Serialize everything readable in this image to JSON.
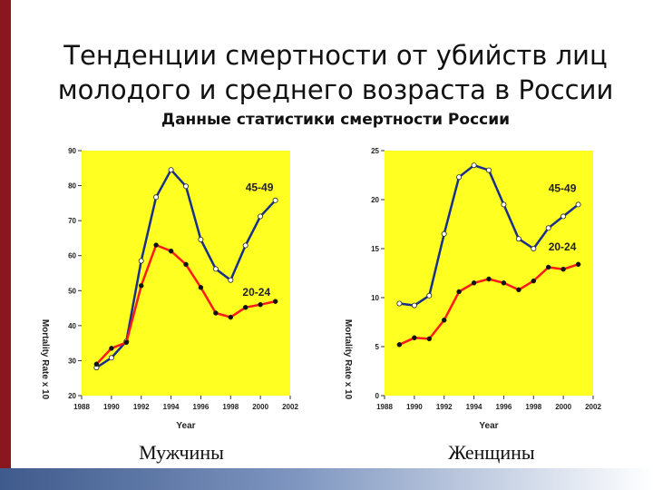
{
  "slide": {
    "title_line1": "Тенденции смертности от убийств лиц",
    "title_line2": "молодого и среднего возраста в России",
    "subtitle": "Данные статистики смертности России"
  },
  "colors": {
    "plot_background": "#ffff22",
    "series_45_49": "#1a2f8a",
    "series_20_24": "#ff1a1a",
    "accent_bar": "#8a1620"
  },
  "chart_data": [
    {
      "type": "line",
      "caption": "Мужчины",
      "xlabel": "Year",
      "ylabel": "Mortality Rate x 10",
      "xlim": [
        1988,
        2002
      ],
      "ylim": [
        20,
        90
      ],
      "xticks": [
        "1988",
        "1990",
        "1992",
        "1994",
        "1996",
        "1998",
        "2000",
        "2002"
      ],
      "yticks": [
        "20",
        "30",
        "40",
        "50",
        "60",
        "70",
        "80",
        "90"
      ],
      "grid": false,
      "series": [
        {
          "name": "45-49",
          "color": "#1a2f8a",
          "marker": "white",
          "x": [
            1989,
            1990,
            1991,
            1992,
            1993,
            1994,
            1995,
            1996,
            1997,
            1998,
            1999,
            2000,
            2001
          ],
          "y": [
            28,
            30.8,
            35.5,
            58.5,
            76.7,
            84.5,
            79.8,
            64.6,
            56.2,
            53,
            62.9,
            71.2,
            75.8
          ]
        },
        {
          "name": "20-24",
          "color": "#ff1a1a",
          "marker": "black",
          "x": [
            1989,
            1990,
            1991,
            1992,
            1993,
            1994,
            1995,
            1996,
            1997,
            1998,
            1999,
            2000,
            2001
          ],
          "y": [
            29,
            33.5,
            35.2,
            51.4,
            63,
            61.3,
            57.5,
            50.9,
            43.6,
            42.4,
            45.2,
            46,
            46.9
          ]
        }
      ]
    },
    {
      "type": "line",
      "caption": "Женщины",
      "xlabel": "Year",
      "ylabel": "Mortality Rate x 10",
      "xlim": [
        1988,
        2002
      ],
      "ylim": [
        0,
        25
      ],
      "xticks": [
        "1988",
        "1990",
        "1992",
        "1994",
        "1996",
        "1998",
        "2000",
        "2002"
      ],
      "yticks": [
        "0",
        "5",
        "10",
        "15",
        "20",
        "25"
      ],
      "grid": false,
      "series": [
        {
          "name": "45-49",
          "color": "#1a2f8a",
          "marker": "white",
          "x": [
            1989,
            1990,
            1991,
            1992,
            1993,
            1994,
            1995,
            1996,
            1997,
            1998,
            1999,
            2000,
            2001
          ],
          "y": [
            9.4,
            9.2,
            10.2,
            16.5,
            22.3,
            23.5,
            23,
            19.5,
            16,
            15,
            17.1,
            18.3,
            19.5
          ]
        },
        {
          "name": "20-24",
          "color": "#ff1a1a",
          "marker": "black",
          "x": [
            1989,
            1990,
            1991,
            1992,
            1993,
            1994,
            1995,
            1996,
            1997,
            1998,
            1999,
            2000,
            2001
          ],
          "y": [
            5.2,
            5.9,
            5.8,
            7.7,
            10.6,
            11.5,
            11.9,
            11.5,
            10.8,
            11.7,
            13.1,
            12.9,
            13.4
          ]
        }
      ]
    }
  ]
}
